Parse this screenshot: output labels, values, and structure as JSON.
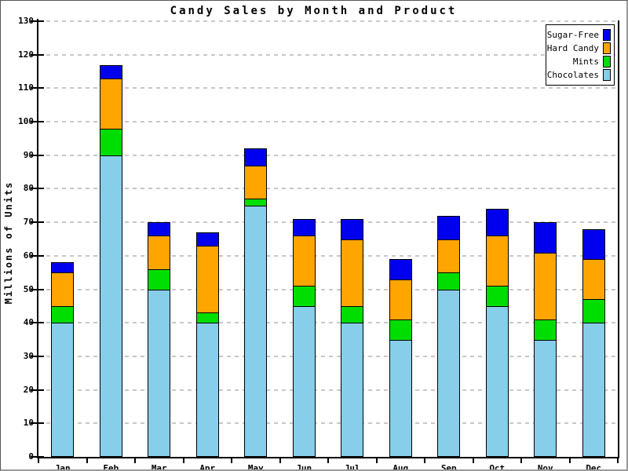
{
  "chart_data": {
    "type": "bar",
    "stacked": true,
    "title": "Candy Sales by Month and Product",
    "xlabel": "",
    "ylabel": "Millions of Units",
    "ylim": [
      0,
      130
    ],
    "ytick_step": 10,
    "grid": true,
    "grid_color": "#C8C8C8",
    "axis_color": "#000000",
    "categories": [
      "Jan",
      "Feb",
      "Mar",
      "Apr",
      "May",
      "Jun",
      "Jul",
      "Aug",
      "Sep",
      "Oct",
      "Nov",
      "Dec"
    ],
    "series": [
      {
        "name": "Chocolates",
        "color": "#87CEEB",
        "values": [
          40,
          90,
          50,
          40,
          75,
          45,
          40,
          35,
          50,
          45,
          35,
          40
        ]
      },
      {
        "name": "Mints",
        "color": "#00DD00",
        "values": [
          5,
          8,
          6,
          3,
          2,
          6,
          5,
          6,
          5,
          6,
          6,
          7
        ]
      },
      {
        "name": "Hard Candy",
        "color": "#FFA500",
        "values": [
          10,
          15,
          10,
          20,
          10,
          15,
          20,
          12,
          10,
          15,
          20,
          12
        ]
      },
      {
        "name": "Sugar-Free",
        "color": "#0000EE",
        "values": [
          3,
          4,
          4,
          4,
          5,
          5,
          6,
          6,
          7,
          8,
          9,
          9
        ]
      }
    ],
    "totals": [
      58,
      117,
      70,
      67,
      92,
      71,
      71,
      59,
      72,
      74,
      70,
      68
    ],
    "legend": {
      "position": "top-right",
      "items": [
        {
          "label": "Sugar-Free",
          "color": "#0000EE"
        },
        {
          "label": "Hard Candy",
          "color": "#FFA500"
        },
        {
          "label": "Mints",
          "color": "#00DD00"
        },
        {
          "label": "Chocolates",
          "color": "#87CEEB"
        }
      ]
    }
  }
}
